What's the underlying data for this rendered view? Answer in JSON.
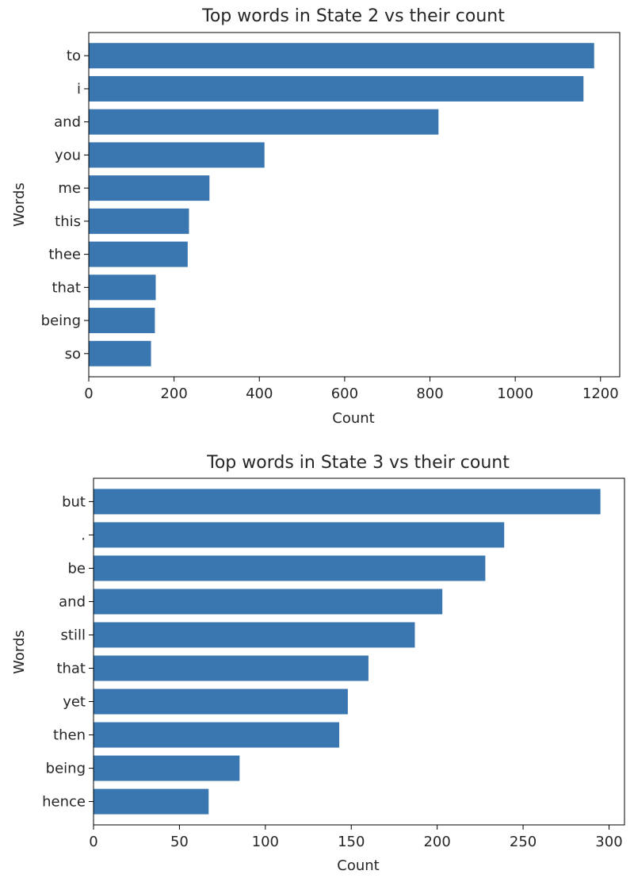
{
  "chart_data": [
    {
      "type": "bar",
      "orientation": "horizontal",
      "title": "Top words in State 2 vs their count",
      "xlabel": "Count",
      "ylabel": "Words",
      "categories": [
        "to",
        "i",
        "and",
        "you",
        "me",
        "this",
        "thee",
        "that",
        "being",
        "so"
      ],
      "values": [
        1185,
        1160,
        820,
        412,
        283,
        235,
        232,
        157,
        155,
        146
      ],
      "xlim": [
        0,
        1245
      ],
      "xticks": [
        0,
        200,
        400,
        600,
        800,
        1000,
        1200
      ],
      "grid": false,
      "bar_color": "#3a77b0"
    },
    {
      "type": "bar",
      "orientation": "horizontal",
      "title": "Top words in State 3 vs their count",
      "xlabel": "Count",
      "ylabel": "Words",
      "categories": [
        "but",
        ".",
        "be",
        "and",
        "still",
        "that",
        "yet",
        "then",
        "being",
        "hence"
      ],
      "values": [
        295,
        239,
        228,
        203,
        187,
        160,
        148,
        143,
        85,
        67
      ],
      "xlim": [
        0,
        309
      ],
      "xticks": [
        0,
        50,
        100,
        150,
        200,
        250,
        300
      ],
      "grid": false,
      "bar_color": "#3a77b0"
    }
  ]
}
